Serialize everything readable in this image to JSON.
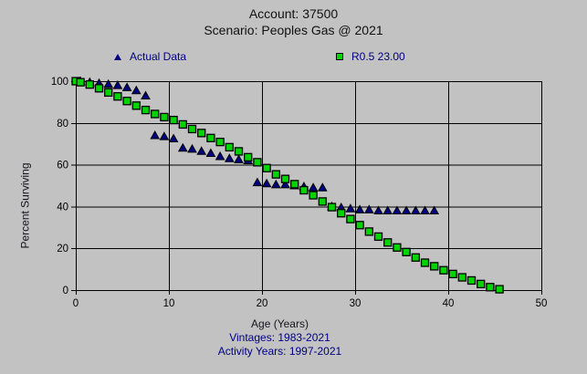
{
  "title": {
    "line1": "Account: 37500",
    "line2": "Scenario: Peoples Gas @ 2021"
  },
  "footer": {
    "xlabel": "Age (Years)",
    "vintages": "Vintages: 1983-2021",
    "activity_years": "Activity Years: 1997-2021"
  },
  "colors": {
    "background": "#c2c2c2",
    "actual_marker": "#000080",
    "fitted_marker": "#00d400",
    "navy_text": "#000080",
    "axis_line": "#000000"
  },
  "chart_data": {
    "type": "scatter",
    "title": "Account: 37500 / Scenario: Peoples Gas @ 2021",
    "xlabel": "Age (Years)",
    "ylabel": "Percent Surviving",
    "xlim": [
      0,
      50
    ],
    "ylim": [
      0,
      100
    ],
    "xticks": [
      0,
      10,
      20,
      30,
      40,
      50
    ],
    "yticks": [
      0,
      20,
      40,
      60,
      80,
      100
    ],
    "grid": true,
    "legend_position": "top",
    "series": [
      {
        "name": "Actual Data",
        "marker": "triangle",
        "color": "#000080",
        "points": [
          [
            0.5,
            100
          ],
          [
            1.5,
            99.5
          ],
          [
            2.5,
            99
          ],
          [
            3.5,
            98.5
          ],
          [
            4.5,
            98
          ],
          [
            5.5,
            97
          ],
          [
            6.5,
            95.5
          ],
          [
            7.5,
            93
          ],
          [
            8.5,
            74
          ],
          [
            9.5,
            73.5
          ],
          [
            10.5,
            72.5
          ],
          [
            11.5,
            68
          ],
          [
            12.5,
            67.5
          ],
          [
            13.5,
            66.5
          ],
          [
            14.5,
            65.5
          ],
          [
            15.5,
            64
          ],
          [
            16.5,
            63
          ],
          [
            17.5,
            62.5
          ],
          [
            18.5,
            62
          ],
          [
            19.5,
            51.5
          ],
          [
            20.5,
            51
          ],
          [
            21.5,
            50.5
          ],
          [
            22.5,
            50.5
          ],
          [
            23.5,
            50
          ],
          [
            24.5,
            49.5
          ],
          [
            25.5,
            49
          ],
          [
            26.5,
            49
          ],
          [
            27.5,
            40
          ],
          [
            28.5,
            39.5
          ],
          [
            29.5,
            39
          ],
          [
            30.5,
            38.5
          ],
          [
            31.5,
            38.5
          ],
          [
            32.5,
            38
          ],
          [
            33.5,
            38
          ],
          [
            34.5,
            38
          ],
          [
            35.5,
            38
          ],
          [
            36.5,
            38
          ],
          [
            37.5,
            38
          ],
          [
            38.5,
            38
          ]
        ]
      },
      {
        "name": "R0.5 23.00",
        "marker": "square",
        "color": "#00d400",
        "points": [
          [
            0,
            100
          ],
          [
            0.5,
            99.5
          ],
          [
            1.5,
            98.4
          ],
          [
            2.5,
            96.6
          ],
          [
            3.5,
            94.6
          ],
          [
            4.5,
            92.7
          ],
          [
            5.5,
            90.5
          ],
          [
            6.5,
            88.3
          ],
          [
            7.5,
            86.2
          ],
          [
            8.5,
            84.3
          ],
          [
            9.5,
            82.8
          ],
          [
            10.5,
            81.4
          ],
          [
            11.5,
            79.3
          ],
          [
            12.5,
            77.1
          ],
          [
            13.5,
            75.2
          ],
          [
            14.5,
            72.8
          ],
          [
            15.5,
            70.9
          ],
          [
            16.5,
            68.4
          ],
          [
            17.5,
            66.4
          ],
          [
            18.5,
            63.6
          ],
          [
            19.5,
            61.2
          ],
          [
            20.5,
            58.4
          ],
          [
            21.5,
            55.4
          ],
          [
            22.5,
            53.2
          ],
          [
            23.5,
            50.7
          ],
          [
            24.5,
            47.8
          ],
          [
            25.5,
            45.4
          ],
          [
            26.5,
            42.4
          ],
          [
            27.5,
            39.7
          ],
          [
            28.5,
            36.8
          ],
          [
            29.5,
            34.0
          ],
          [
            30.5,
            31.1
          ],
          [
            31.5,
            28.0
          ],
          [
            32.5,
            25.6
          ],
          [
            33.5,
            22.8
          ],
          [
            34.5,
            20.4
          ],
          [
            35.5,
            18.2
          ],
          [
            36.5,
            15.6
          ],
          [
            37.5,
            13.1
          ],
          [
            38.5,
            11.4
          ],
          [
            39.5,
            9.5
          ],
          [
            40.5,
            7.7
          ],
          [
            41.5,
            6.1
          ],
          [
            42.5,
            4.6
          ],
          [
            43.5,
            2.9
          ],
          [
            44.5,
            1.4
          ],
          [
            45.5,
            0.4
          ]
        ]
      }
    ]
  }
}
